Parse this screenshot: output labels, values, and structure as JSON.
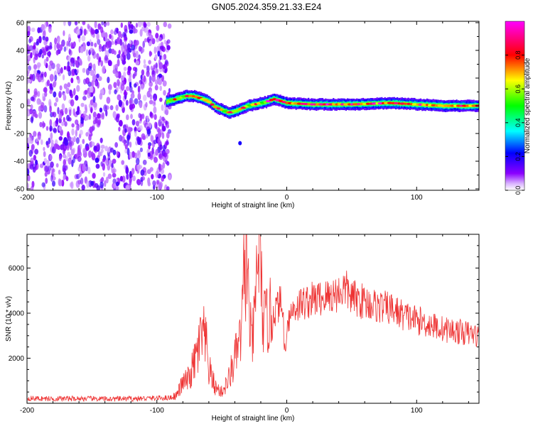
{
  "figure": {
    "title": "GN05.2024.359.21.33.E24"
  },
  "chart_data": [
    {
      "type": "heatmap",
      "title": "GN05.2024.359.21.33.E24",
      "xlabel": "Height of straight line (km)",
      "ylabel": "Frequency (Hz)",
      "xlim": [
        -200,
        148
      ],
      "ylim": [
        -61,
        61
      ],
      "x_ticks": [
        -200,
        -100,
        0,
        100
      ],
      "y_ticks": [
        -60,
        -40,
        -20,
        0,
        20,
        40,
        60
      ],
      "colorbar": {
        "label": "Normalized spectral amplitude",
        "range": [
          0,
          1
        ],
        "ticks": [
          0.0,
          0.2,
          0.4,
          0.6,
          0.8
        ],
        "tick_labels": [
          "0.0",
          "0.2",
          "0.4",
          "0.6",
          "0.8"
        ],
        "colormap": [
          "#ffffff",
          "#8b00ff",
          "#0000ff",
          "#00ffff",
          "#00ff00",
          "#ffff00",
          "#ff0000",
          "#ff00ff"
        ]
      },
      "regions": [
        {
          "name": "broadband noise",
          "x_range": [
            -200,
            -90
          ],
          "f_range": [
            -60,
            60
          ],
          "amplitude": 0.15
        },
        {
          "name": "dominant frequency track",
          "points": [
            [
              -93,
              3
            ],
            [
              -85,
              5
            ],
            [
              -78,
              7
            ],
            [
              -72,
              7
            ],
            [
              -65,
              5
            ],
            [
              -60,
              3
            ],
            [
              -55,
              -1
            ],
            [
              -50,
              -3
            ],
            [
              -45,
              -5
            ],
            [
              -40,
              -4
            ],
            [
              -35,
              -2
            ],
            [
              -30,
              0
            ],
            [
              -25,
              1
            ],
            [
              -20,
              2
            ],
            [
              -15,
              3
            ],
            [
              -10,
              5
            ],
            [
              0,
              2
            ],
            [
              20,
              1
            ],
            [
              50,
              1
            ],
            [
              80,
              2
            ],
            [
              100,
              1
            ],
            [
              120,
              0
            ],
            [
              148,
              0
            ]
          ],
          "amplitude": 0.9
        }
      ]
    },
    {
      "type": "line",
      "xlabel": "Height of straight line (km)",
      "ylabel": "SNR (10 * v/v)",
      "xlim": [
        -200,
        148
      ],
      "ylim": [
        0,
        7500
      ],
      "x_ticks": [
        -200,
        -100,
        0,
        100
      ],
      "y_ticks": [
        2000,
        4000,
        6000
      ],
      "color": "#ee3333",
      "series": [
        {
          "x": [
            -200,
            -180,
            -160,
            -140,
            -120,
            -100,
            -90,
            -85,
            -80,
            -75,
            -70,
            -65,
            -62,
            -60,
            -55,
            -50,
            -45,
            -40,
            -35,
            -33,
            -31,
            -29,
            -27,
            -25,
            -23,
            -21,
            -19,
            -17,
            -15,
            -12,
            -8,
            -5,
            -3,
            -1,
            0,
            5,
            10,
            20,
            30,
            40,
            45,
            50,
            60,
            70,
            80,
            90,
            100,
            110,
            120,
            130,
            140,
            148
          ],
          "y": [
            220,
            200,
            210,
            190,
            200,
            230,
            250,
            350,
            900,
            1100,
            2000,
            3000,
            2500,
            1500,
            700,
            500,
            1000,
            2000,
            3000,
            5500,
            6800,
            4000,
            2500,
            3500,
            5800,
            7400,
            4200,
            3500,
            3700,
            3900,
            4200,
            4500,
            4000,
            1900,
            3600,
            4200,
            4400,
            4600,
            4700,
            4900,
            5100,
            4700,
            4500,
            4300,
            4200,
            3900,
            3700,
            3500,
            3300,
            3200,
            3100,
            3000
          ]
        }
      ]
    }
  ]
}
